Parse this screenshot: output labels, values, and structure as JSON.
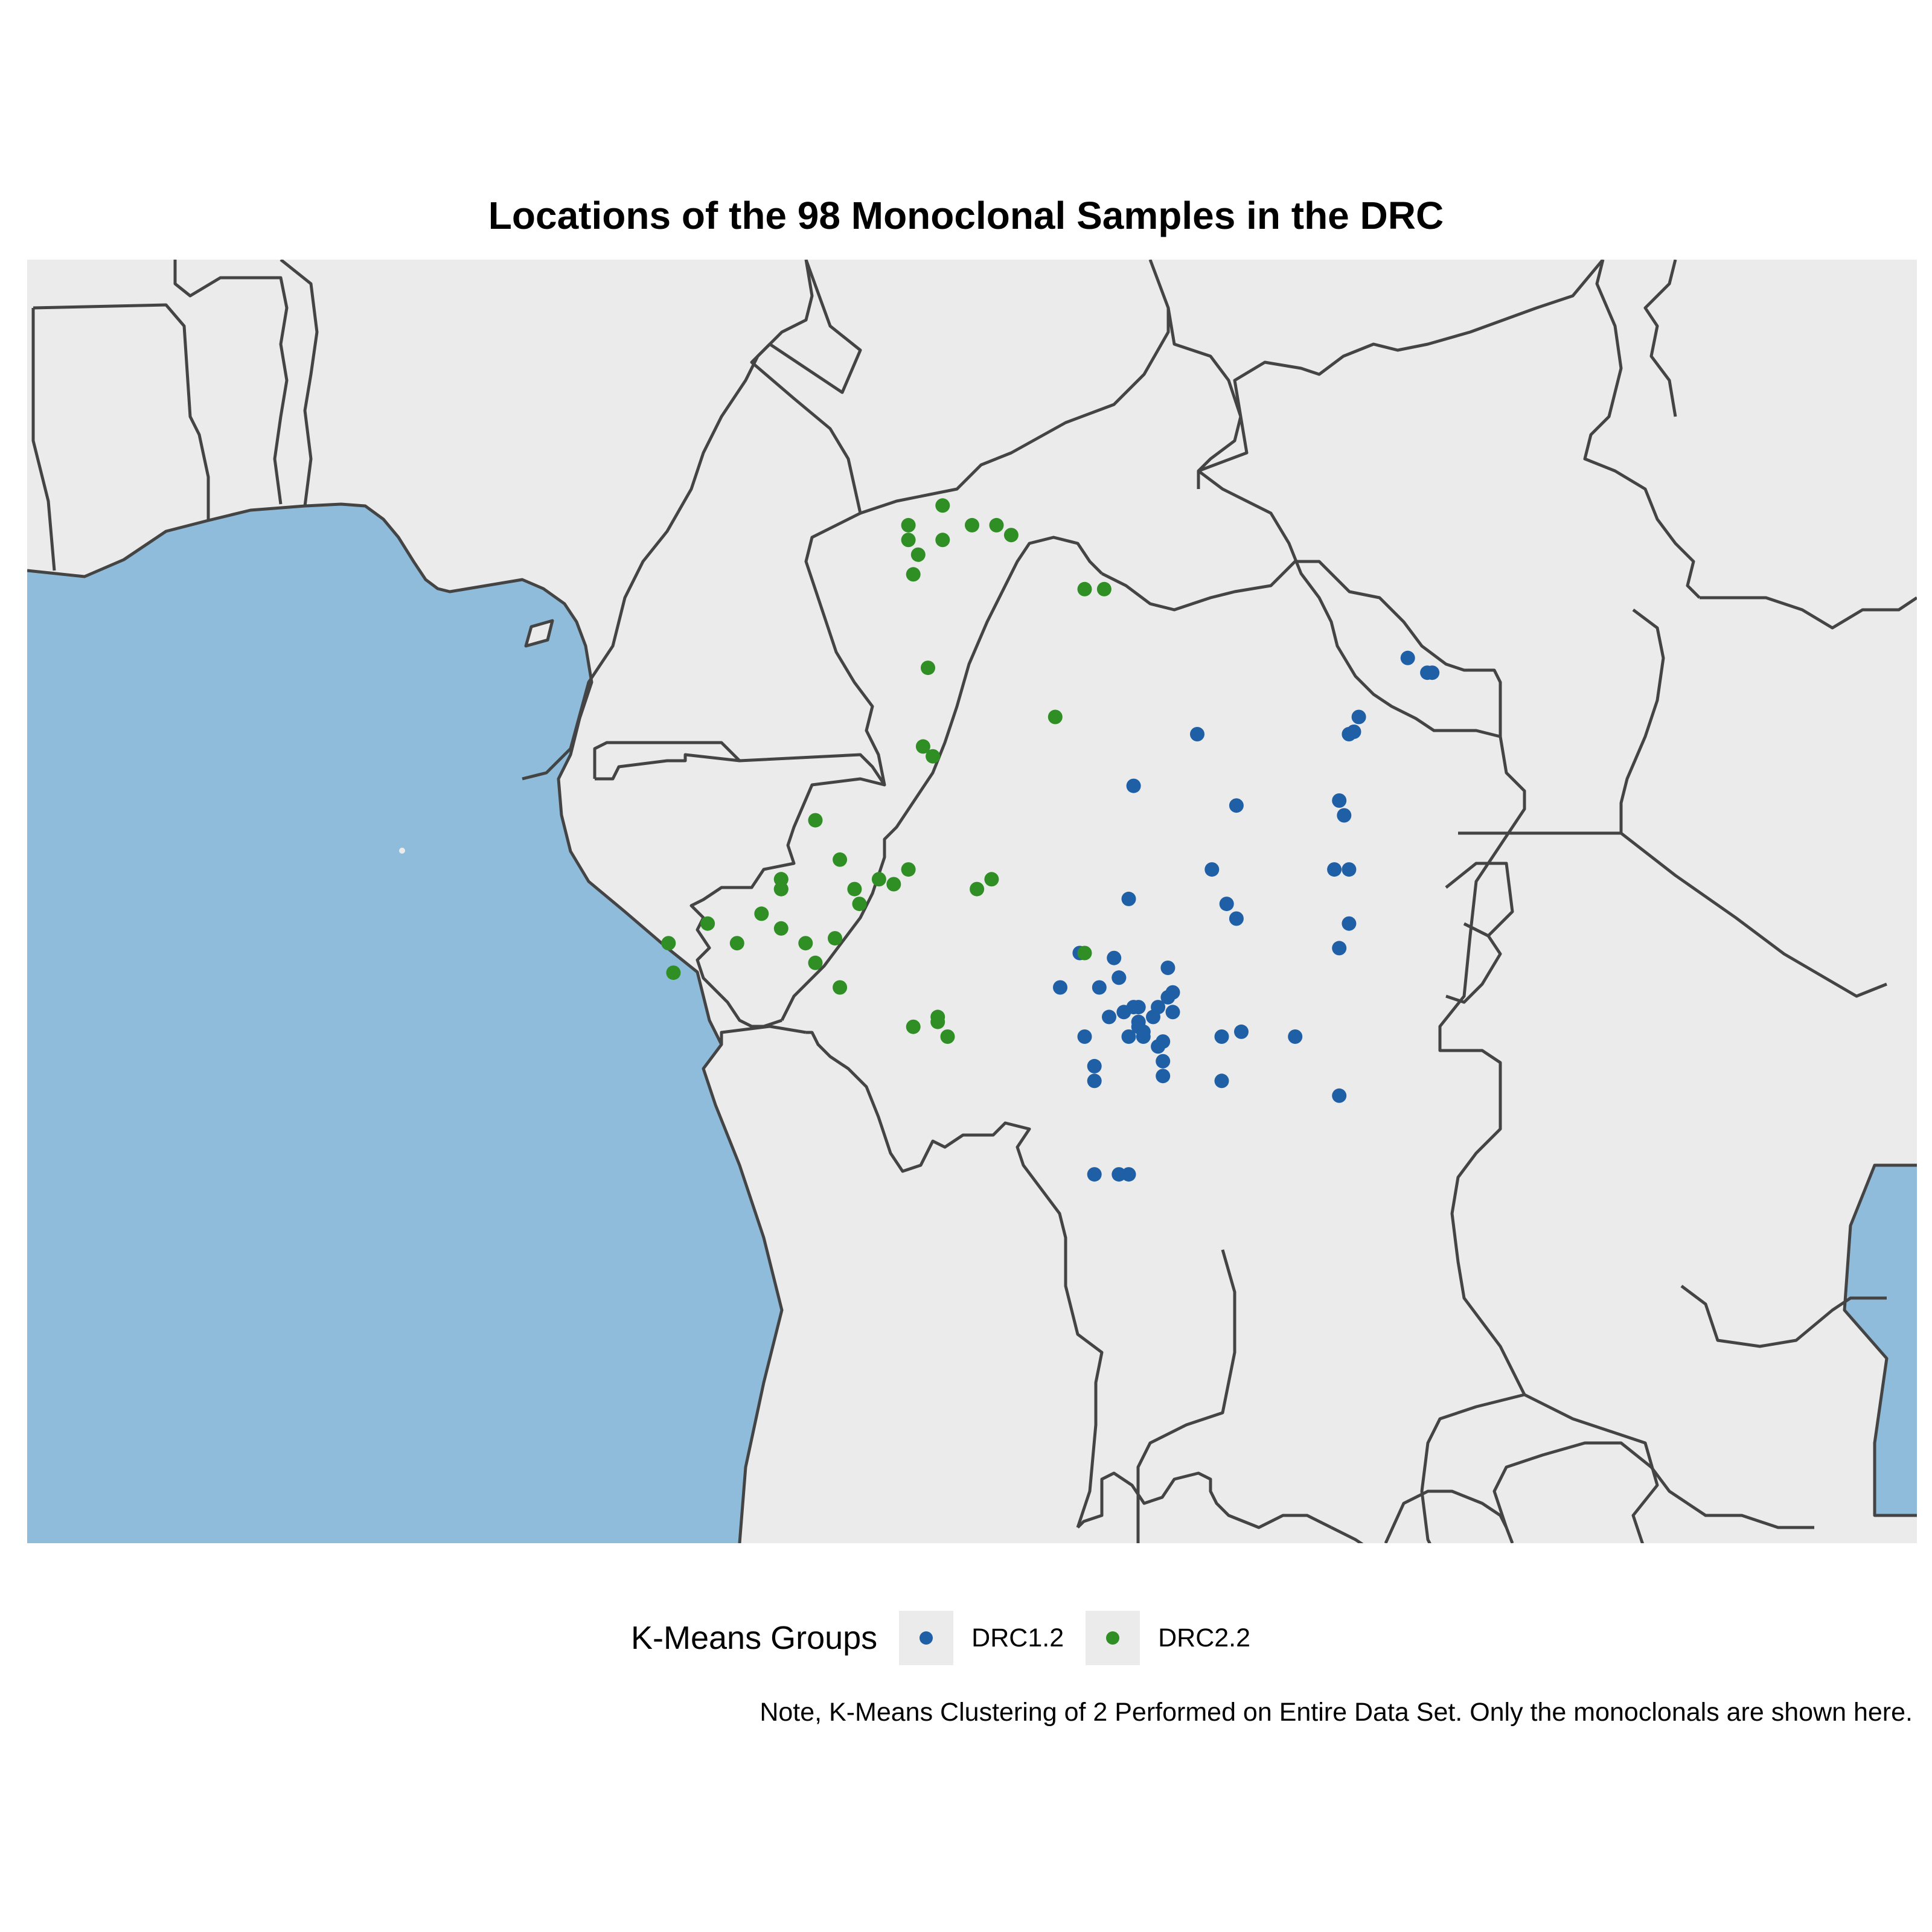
{
  "title": "Locations of the 98 Monoclonal Samples in the DRC",
  "caption": "Note, K-Means Clustering of 2 Performed on Entire Data Set. Only the monoclonals are shown here.",
  "colors": {
    "ocean": "#8fbcdb",
    "land": "#ebebeb",
    "border": "#444444",
    "DRC1.2": "#1f5fa6",
    "DRC2.2": "#2f8f24"
  },
  "legend": {
    "title": "K-Means Groups",
    "items": [
      {
        "label": "DRC1.2",
        "color": "#1f5fa6"
      },
      {
        "label": "DRC2.2",
        "color": "#2f8f24"
      }
    ]
  },
  "chart_data": {
    "type": "scatter",
    "title": "Locations of the 98 Monoclonal Samples in the DRC",
    "map_extent": {
      "lon": [
        1.2,
        39.8
      ],
      "lat": [
        -16.5,
        9.6
      ]
    },
    "series": [
      {
        "name": "DRC1.2",
        "color": "#1f5fa6",
        "points": [
          [
            29.4,
            1.5
          ],
          [
            29.9,
            1.2
          ],
          [
            29.8,
            1.2
          ],
          [
            28.4,
            0.3
          ],
          [
            28.3,
            0.0
          ],
          [
            28.2,
            -0.05
          ],
          [
            25.1,
            -0.05
          ],
          [
            23.8,
            -1.1
          ],
          [
            25.9,
            -1.5
          ],
          [
            28.0,
            -1.4
          ],
          [
            28.1,
            -1.7
          ],
          [
            25.4,
            -2.8
          ],
          [
            27.9,
            -2.8
          ],
          [
            28.2,
            -2.8
          ],
          [
            23.7,
            -3.4
          ],
          [
            25.7,
            -3.5
          ],
          [
            25.9,
            -3.8
          ],
          [
            28.2,
            -3.9
          ],
          [
            28.0,
            -4.4
          ],
          [
            22.7,
            -4.5
          ],
          [
            23.4,
            -4.6
          ],
          [
            23.5,
            -5.0
          ],
          [
            23.1,
            -5.2
          ],
          [
            23.5,
            -5.0
          ],
          [
            24.5,
            -4.8
          ],
          [
            23.9,
            -5.6
          ],
          [
            24.3,
            -5.6
          ],
          [
            23.8,
            -5.6
          ],
          [
            22.3,
            -5.2
          ],
          [
            23.3,
            -5.8
          ],
          [
            23.6,
            -5.7
          ],
          [
            24.5,
            -5.4
          ],
          [
            24.6,
            -5.3
          ],
          [
            24.2,
            -5.8
          ],
          [
            23.9,
            -5.9
          ],
          [
            24.6,
            -5.7
          ],
          [
            23.7,
            -6.2
          ],
          [
            25.6,
            -6.2
          ],
          [
            24.0,
            -6.1
          ],
          [
            23.9,
            -6.0
          ],
          [
            24.4,
            -6.3
          ],
          [
            24.3,
            -6.4
          ],
          [
            24.4,
            -6.7
          ],
          [
            24.0,
            -6.2
          ],
          [
            26.0,
            -6.1
          ],
          [
            27.1,
            -6.2
          ],
          [
            22.8,
            -6.2
          ],
          [
            23.0,
            -6.8
          ],
          [
            24.4,
            -7.0
          ],
          [
            25.6,
            -7.1
          ],
          [
            23.0,
            -7.1
          ],
          [
            28.0,
            -7.4
          ],
          [
            23.5,
            -9.0
          ],
          [
            23.0,
            -9.0
          ],
          [
            23.7,
            -9.0
          ]
        ]
      },
      {
        "name": "DRC2.2",
        "color": "#2f8f24",
        "points": [
          [
            19.9,
            4.6
          ],
          [
            19.2,
            4.2
          ],
          [
            19.2,
            3.9
          ],
          [
            19.9,
            3.9
          ],
          [
            20.5,
            4.2
          ],
          [
            21.0,
            4.2
          ],
          [
            21.3,
            4.0
          ],
          [
            19.4,
            3.6
          ],
          [
            19.3,
            3.2
          ],
          [
            22.8,
            2.9
          ],
          [
            23.2,
            2.9
          ],
          [
            19.6,
            1.3
          ],
          [
            22.2,
            0.3
          ],
          [
            19.5,
            -0.3
          ],
          [
            19.7,
            -0.5
          ],
          [
            17.3,
            -1.8
          ],
          [
            17.8,
            -2.6
          ],
          [
            19.2,
            -2.8
          ],
          [
            18.6,
            -3.0
          ],
          [
            18.9,
            -3.1
          ],
          [
            20.6,
            -3.2
          ],
          [
            20.9,
            -3.0
          ],
          [
            16.6,
            -3.0
          ],
          [
            16.6,
            -3.2
          ],
          [
            16.2,
            -3.7
          ],
          [
            15.1,
            -3.9
          ],
          [
            16.6,
            -4.0
          ],
          [
            15.7,
            -4.3
          ],
          [
            17.7,
            -4.2
          ],
          [
            17.3,
            -4.7
          ],
          [
            17.8,
            -5.2
          ],
          [
            14.3,
            -4.3
          ],
          [
            14.4,
            -4.9
          ],
          [
            18.1,
            -3.2
          ],
          [
            18.2,
            -3.5
          ],
          [
            22.8,
            -4.5
          ],
          [
            19.3,
            -6.0
          ],
          [
            20.0,
            -6.2
          ],
          [
            19.8,
            -5.8
          ],
          [
            16.6,
            -3.2
          ],
          [
            17.1,
            -4.3
          ],
          [
            19.8,
            -5.9
          ],
          [
            16.6,
            -3.0
          ]
        ]
      }
    ]
  }
}
